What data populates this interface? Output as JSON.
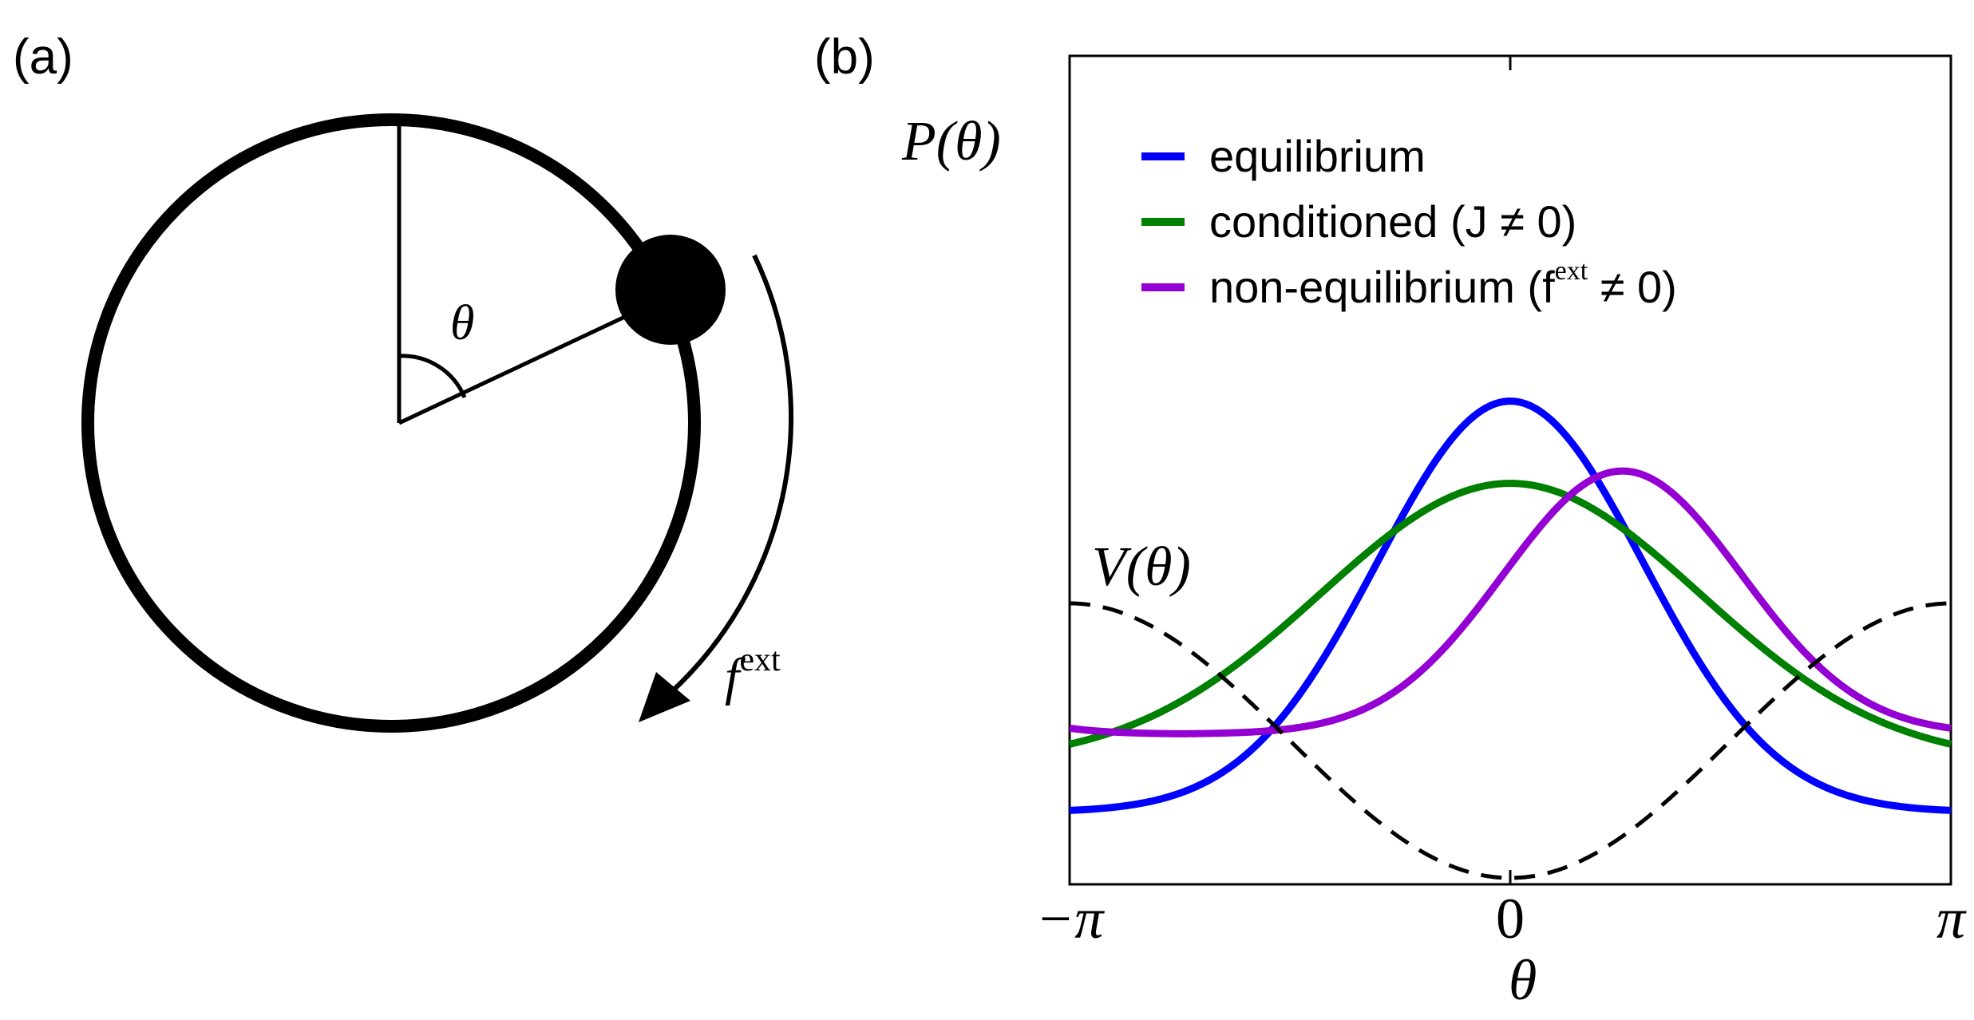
{
  "panel_a": {
    "label": "(a)",
    "angle_symbol": "θ",
    "force_symbol": "f",
    "force_superscript": "ext"
  },
  "panel_b": {
    "label": "(b)",
    "y_label": "P(θ)",
    "potential_label": "V(θ)",
    "x_label": "θ",
    "legend": {
      "placement": "top-left",
      "entries": [
        {
          "key": "equilibrium",
          "text": "equilibrium",
          "color": "#0000ff"
        },
        {
          "key": "conditioned",
          "text": "conditioned (J ≠ 0)",
          "color": "#008000"
        },
        {
          "key": "nonequilibrium",
          "text": "non-equilibrium (f",
          "sup": "ext",
          "tail": " ≠ 0)",
          "color": "#9400d3"
        }
      ]
    }
  },
  "chart_data": {
    "type": "line",
    "title": "",
    "xlabel": "θ",
    "ylabel": "P(θ)",
    "xlim": [
      -3.1416,
      3.1416
    ],
    "ylim": [
      0,
      1
    ],
    "grid": false,
    "x_ticks": [
      {
        "value": -3.1416,
        "label": "−π"
      },
      {
        "value": 0,
        "label": "0"
      },
      {
        "value": 3.1416,
        "label": "π"
      }
    ],
    "series": [
      {
        "name": "equilibrium",
        "color": "#0000ff",
        "style": "solid",
        "kind": "gaussian-periodic",
        "params": {
          "base": 0.08,
          "amp": 0.5,
          "center": 0.0,
          "width": 0.95
        }
      },
      {
        "name": "conditioned (J ≠ 0)",
        "color": "#008000",
        "style": "solid",
        "kind": "gaussian-periodic",
        "params": {
          "base": 0.14,
          "amp": 0.34,
          "center": 0.0,
          "width": 1.35
        }
      },
      {
        "name": "non-equilibrium (f^ext ≠ 0)",
        "color": "#9400d3",
        "style": "solid",
        "kind": "gaussian-periodic",
        "params": {
          "base": 0.175,
          "amp": 0.32,
          "center": 0.8,
          "width": 0.85
        }
      },
      {
        "name": "V(θ)",
        "color": "#000000",
        "style": "dashed",
        "kind": "cosine",
        "params": {
          "mid": 0.167,
          "amp": 0.167
        }
      }
    ]
  }
}
